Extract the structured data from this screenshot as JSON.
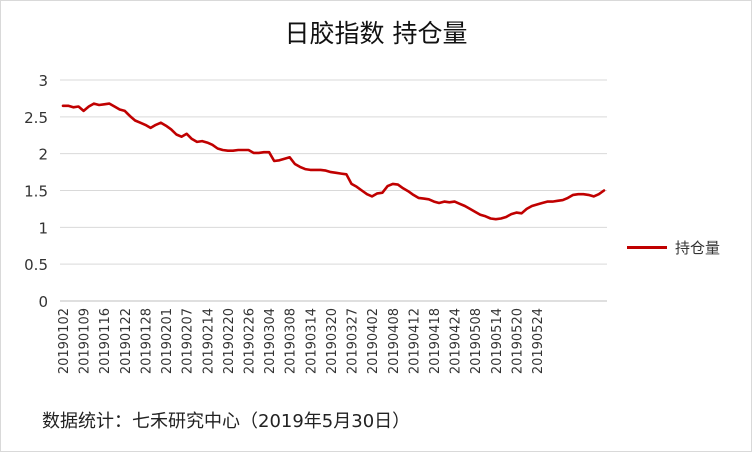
{
  "chart_data": {
    "type": "line",
    "title": "日胶指数 持仓量",
    "xlabel": "",
    "ylabel": "",
    "ylim": [
      0,
      3
    ],
    "yticks": [
      "0",
      "0.5",
      "1",
      "1.5",
      "2",
      "2.5",
      "3"
    ],
    "grid": true,
    "legend_position": "right",
    "color": "#c00000",
    "x_tick_labels": [
      "20190102",
      "20190109",
      "20190116",
      "20190122",
      "20190128",
      "20190201",
      "20190207",
      "20190214",
      "20190220",
      "20190226",
      "20190304",
      "20190308",
      "20190314",
      "20190320",
      "20190327",
      "20190402",
      "20190408",
      "20190412",
      "20190418",
      "20190424",
      "20190508",
      "20190514",
      "20190520",
      "20190524"
    ],
    "series": [
      {
        "name": "持仓量",
        "values": [
          2.65,
          2.65,
          2.63,
          2.64,
          2.58,
          2.64,
          2.68,
          2.66,
          2.67,
          2.68,
          2.64,
          2.6,
          2.58,
          2.51,
          2.45,
          2.42,
          2.39,
          2.35,
          2.39,
          2.42,
          2.38,
          2.33,
          2.26,
          2.23,
          2.27,
          2.2,
          2.16,
          2.17,
          2.15,
          2.12,
          2.07,
          2.05,
          2.04,
          2.04,
          2.05,
          2.05,
          2.05,
          2.01,
          2.01,
          2.02,
          2.02,
          1.9,
          1.91,
          1.93,
          1.95,
          1.86,
          1.82,
          1.79,
          1.78,
          1.78,
          1.78,
          1.77,
          1.75,
          1.74,
          1.73,
          1.72,
          1.59,
          1.55,
          1.5,
          1.45,
          1.42,
          1.46,
          1.47,
          1.56,
          1.59,
          1.58,
          1.53,
          1.49,
          1.44,
          1.4,
          1.39,
          1.38,
          1.35,
          1.33,
          1.35,
          1.34,
          1.35,
          1.32,
          1.29,
          1.25,
          1.21,
          1.17,
          1.15,
          1.12,
          1.11,
          1.12,
          1.14,
          1.18,
          1.2,
          1.19,
          1.25,
          1.29,
          1.31,
          1.33,
          1.35,
          1.35,
          1.36,
          1.37,
          1.4,
          1.44,
          1.45,
          1.45,
          1.44,
          1.42,
          1.45,
          1.5
        ]
      }
    ]
  },
  "footer": "数据统计：七禾研究中心（2019年5月30日）"
}
